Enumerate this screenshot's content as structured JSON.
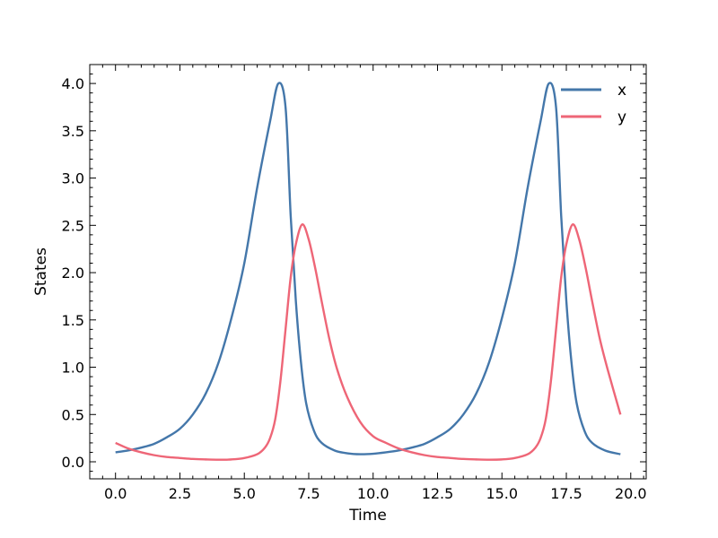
{
  "chart_data": {
    "type": "line",
    "title": "",
    "xlabel": "Time",
    "ylabel": "States",
    "xlim": [
      -1.0,
      20.6
    ],
    "ylim": [
      -0.18,
      4.2
    ],
    "xticks": [
      "0.0",
      "2.5",
      "5.0",
      "7.5",
      "10.0",
      "12.5",
      "15.0",
      "17.5",
      "20.0"
    ],
    "yticks": [
      "0.0",
      "0.5",
      "1.0",
      "1.5",
      "2.0",
      "2.5",
      "3.0",
      "3.5",
      "4.0"
    ],
    "grid": false,
    "legend_placement": "top-right",
    "series": [
      {
        "name": "x",
        "color": "#4477aa",
        "points": [
          [
            0,
            0.1
          ],
          [
            0.5,
            0.12
          ],
          [
            1,
            0.15
          ],
          [
            1.5,
            0.19
          ],
          [
            2,
            0.26
          ],
          [
            2.5,
            0.35
          ],
          [
            3,
            0.5
          ],
          [
            3.5,
            0.72
          ],
          [
            4,
            1.05
          ],
          [
            4.5,
            1.52
          ],
          [
            5,
            2.1
          ],
          [
            5.5,
            2.9
          ],
          [
            6,
            3.6
          ],
          [
            6.32,
            4.0
          ],
          [
            6.6,
            3.75
          ],
          [
            6.8,
            2.6
          ],
          [
            7.0,
            1.7
          ],
          [
            7.2,
            1.05
          ],
          [
            7.4,
            0.62
          ],
          [
            7.7,
            0.33
          ],
          [
            8,
            0.2
          ],
          [
            8.5,
            0.12
          ],
          [
            9,
            0.09
          ],
          [
            9.5,
            0.08
          ],
          [
            10,
            0.085
          ],
          [
            10.5,
            0.1
          ],
          [
            11,
            0.12
          ],
          [
            11.5,
            0.15
          ],
          [
            12,
            0.19
          ],
          [
            12.5,
            0.26
          ],
          [
            13,
            0.35
          ],
          [
            13.5,
            0.5
          ],
          [
            14,
            0.72
          ],
          [
            14.5,
            1.05
          ],
          [
            15,
            1.52
          ],
          [
            15.5,
            2.1
          ],
          [
            16,
            2.9
          ],
          [
            16.5,
            3.6
          ],
          [
            16.82,
            4.0
          ],
          [
            17.1,
            3.75
          ],
          [
            17.3,
            2.6
          ],
          [
            17.5,
            1.7
          ],
          [
            17.7,
            1.05
          ],
          [
            17.9,
            0.62
          ],
          [
            18.2,
            0.33
          ],
          [
            18.5,
            0.2
          ],
          [
            19,
            0.12
          ],
          [
            19.6,
            0.08
          ]
        ]
      },
      {
        "name": "y",
        "color": "#ee6677",
        "points": [
          [
            0,
            0.2
          ],
          [
            0.5,
            0.14
          ],
          [
            1,
            0.1
          ],
          [
            1.5,
            0.07
          ],
          [
            2,
            0.05
          ],
          [
            2.5,
            0.04
          ],
          [
            3,
            0.03
          ],
          [
            3.5,
            0.025
          ],
          [
            4,
            0.022
          ],
          [
            4.5,
            0.025
          ],
          [
            5,
            0.04
          ],
          [
            5.5,
            0.08
          ],
          [
            5.8,
            0.15
          ],
          [
            6,
            0.25
          ],
          [
            6.2,
            0.45
          ],
          [
            6.4,
            0.85
          ],
          [
            6.6,
            1.4
          ],
          [
            6.8,
            1.95
          ],
          [
            7.0,
            2.3
          ],
          [
            7.25,
            2.51
          ],
          [
            7.5,
            2.35
          ],
          [
            7.75,
            2.05
          ],
          [
            8,
            1.7
          ],
          [
            8.3,
            1.3
          ],
          [
            8.6,
            0.98
          ],
          [
            9,
            0.68
          ],
          [
            9.5,
            0.42
          ],
          [
            10,
            0.27
          ],
          [
            10.5,
            0.2
          ],
          [
            11,
            0.14
          ],
          [
            11.5,
            0.1
          ],
          [
            12,
            0.07
          ],
          [
            12.5,
            0.05
          ],
          [
            13,
            0.04
          ],
          [
            13.5,
            0.03
          ],
          [
            14,
            0.025
          ],
          [
            14.5,
            0.022
          ],
          [
            15,
            0.025
          ],
          [
            15.5,
            0.04
          ],
          [
            16,
            0.08
          ],
          [
            16.3,
            0.15
          ],
          [
            16.5,
            0.25
          ],
          [
            16.7,
            0.45
          ],
          [
            16.9,
            0.85
          ],
          [
            17.1,
            1.4
          ],
          [
            17.3,
            1.95
          ],
          [
            17.5,
            2.3
          ],
          [
            17.75,
            2.51
          ],
          [
            18,
            2.35
          ],
          [
            18.25,
            2.05
          ],
          [
            18.5,
            1.7
          ],
          [
            18.8,
            1.3
          ],
          [
            19.1,
            0.98
          ],
          [
            19.6,
            0.5
          ]
        ]
      }
    ]
  }
}
